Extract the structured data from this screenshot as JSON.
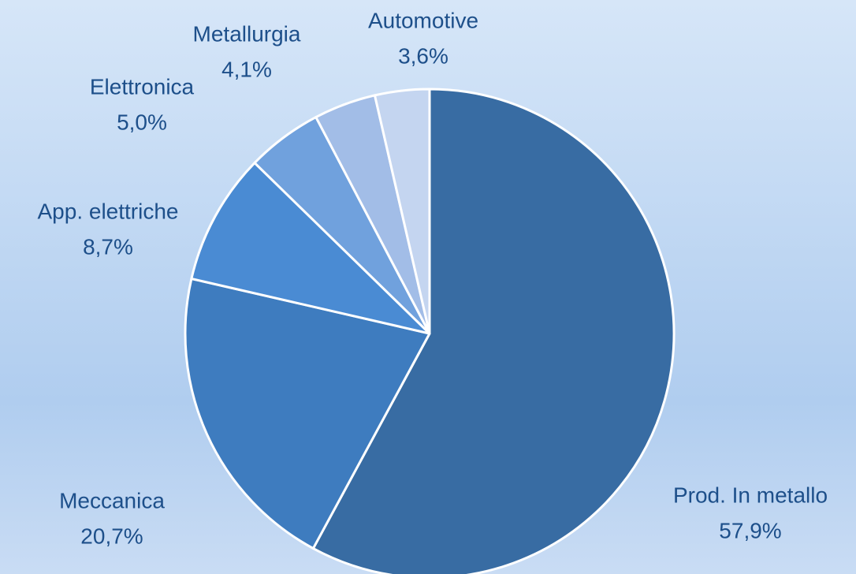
{
  "chart_data": {
    "type": "pie",
    "categories": [
      "Prod. In metallo",
      "Meccanica",
      "App. elettriche",
      "Elettronica",
      "Metallurgia",
      "Automotive"
    ],
    "values": [
      57.9,
      20.7,
      8.7,
      5.0,
      4.1,
      3.6
    ],
    "value_labels": [
      "57,9%",
      "20,7%",
      "8,7%",
      "5,0%",
      "4,1%",
      "3,6%"
    ],
    "colors": [
      "#386ca3",
      "#3e7cbf",
      "#4a8bd3",
      "#70a1dd",
      "#a2bde7",
      "#c4d5f0"
    ]
  }
}
